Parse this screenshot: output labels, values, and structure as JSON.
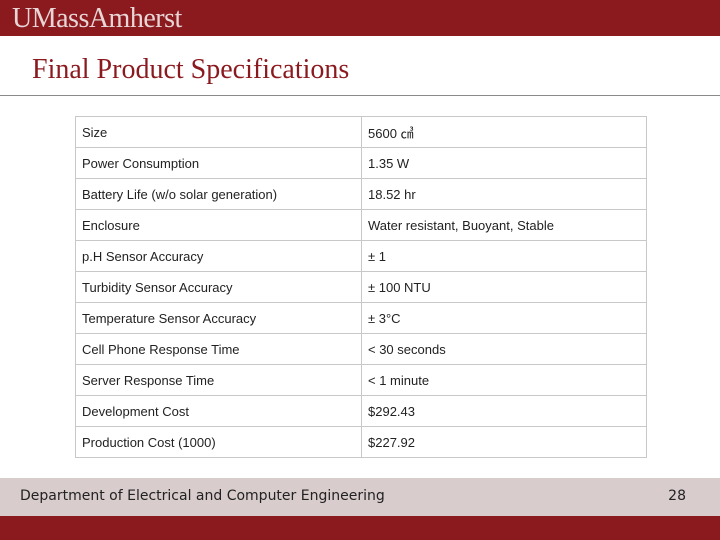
{
  "header": {
    "logo_text": "UMassAmherst"
  },
  "slide": {
    "title": "Final Product Specifications"
  },
  "specs": [
    {
      "label": "Size",
      "value": "5600 ㎤"
    },
    {
      "label": "Power Consumption",
      "value": "1.35 W"
    },
    {
      "label": "Battery Life (w/o solar generation)",
      "value": "18.52 hr"
    },
    {
      "label": "Enclosure",
      "value": "Water resistant, Buoyant, Stable"
    },
    {
      "label": "p.H Sensor Accuracy",
      "value": "± 1"
    },
    {
      "label": "Turbidity Sensor Accuracy",
      "value": "± 100 NTU"
    },
    {
      "label": "Temperature Sensor Accuracy",
      "value": "± 3°C"
    },
    {
      "label": "Cell Phone Response Time",
      "value": "< 30 seconds"
    },
    {
      "label": "Server Response Time",
      "value": "< 1 minute"
    },
    {
      "label": "Development Cost",
      "value": "$292.43"
    },
    {
      "label": "Production Cost (1000)",
      "value": "$227.92"
    }
  ],
  "footer": {
    "department": "Department of Electrical and Computer Engineering",
    "page_number": "28"
  },
  "colors": {
    "brand_maroon": "#8b1a1f",
    "footer_band": "#d9cccc"
  }
}
